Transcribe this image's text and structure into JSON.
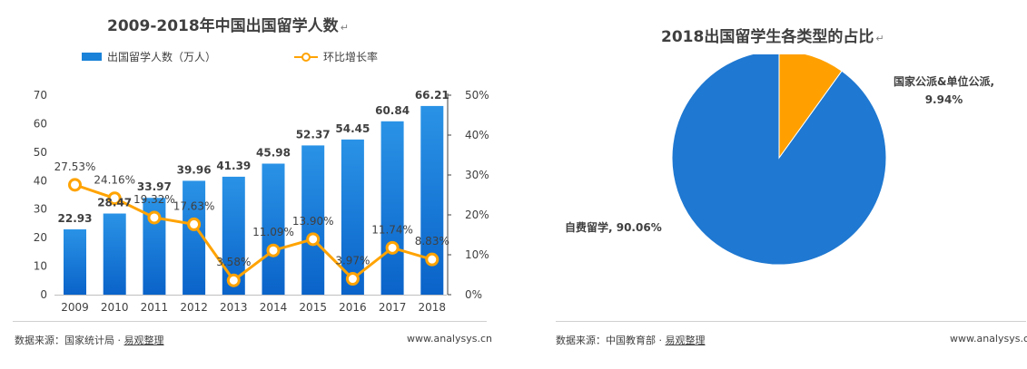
{
  "left_chart": {
    "title": "2009-2018年中国出国留学人数",
    "legend": {
      "bar_label": "出国留学人数（万人）",
      "line_label": "环比增长率"
    },
    "footer": {
      "source_prefix": "数据来源：国家统计局 · ",
      "source_link": "易观整理",
      "site": "www.analysys.cn"
    }
  },
  "right_chart": {
    "title": "2018出国留学生各类型的占比",
    "footer": {
      "source_prefix": "数据来源：中国教育部 · ",
      "source_link": "易观整理",
      "site": "www.analysys.cn"
    },
    "labels": {
      "public": {
        "line1": "国家公派&单位公派,",
        "line2": "9.94%"
      },
      "self": {
        "text": "自费留学, 90.06%"
      }
    }
  },
  "colors": {
    "bar": "#1a82d9",
    "bar_dark": "#0a63c9",
    "line": "#ffa300",
    "pie_main": "#1f78d1",
    "pie_minor": "#ffa000"
  },
  "chart_data": [
    {
      "type": "bar",
      "title": "2009-2018年中国出国留学人数",
      "categories": [
        "2009",
        "2010",
        "2011",
        "2012",
        "2013",
        "2014",
        "2015",
        "2016",
        "2017",
        "2018"
      ],
      "series": [
        {
          "name": "出国留学人数（万人）",
          "type": "bar",
          "axis": "left",
          "values": [
            22.93,
            28.47,
            33.97,
            39.96,
            41.39,
            45.98,
            52.37,
            54.45,
            60.84,
            66.21
          ]
        },
        {
          "name": "环比增长率",
          "type": "line",
          "axis": "right",
          "values": [
            27.53,
            24.16,
            19.32,
            17.63,
            3.58,
            11.09,
            13.9,
            3.97,
            11.74,
            8.83
          ]
        }
      ],
      "value_labels": [
        "22.93",
        "28.47",
        "33.97",
        "39.96",
        "41.39",
        "45.98",
        "52.37",
        "54.45",
        "60.84",
        "66.21"
      ],
      "rate_labels": [
        "27.53%",
        "24.16%",
        "19.32%",
        "17.63%",
        "3.58%",
        "11.09%",
        "13.90%",
        "3.97%",
        "11.74%",
        "8.83%"
      ],
      "ylim_left": [
        0,
        70
      ],
      "yticks_left": [
        "0",
        "10",
        "20",
        "30",
        "40",
        "50",
        "60",
        "70"
      ],
      "ylim_right": [
        0,
        50
      ],
      "yticks_right": [
        "0%",
        "10%",
        "20%",
        "30%",
        "40%",
        "50%"
      ],
      "grid": false,
      "legend_position": "top-left"
    },
    {
      "type": "pie",
      "title": "2018出国留学生各类型的占比",
      "slices": [
        {
          "label": "自费留学",
          "value": 90.06
        },
        {
          "label": "国家公派&单位公派",
          "value": 9.94
        }
      ]
    }
  ]
}
